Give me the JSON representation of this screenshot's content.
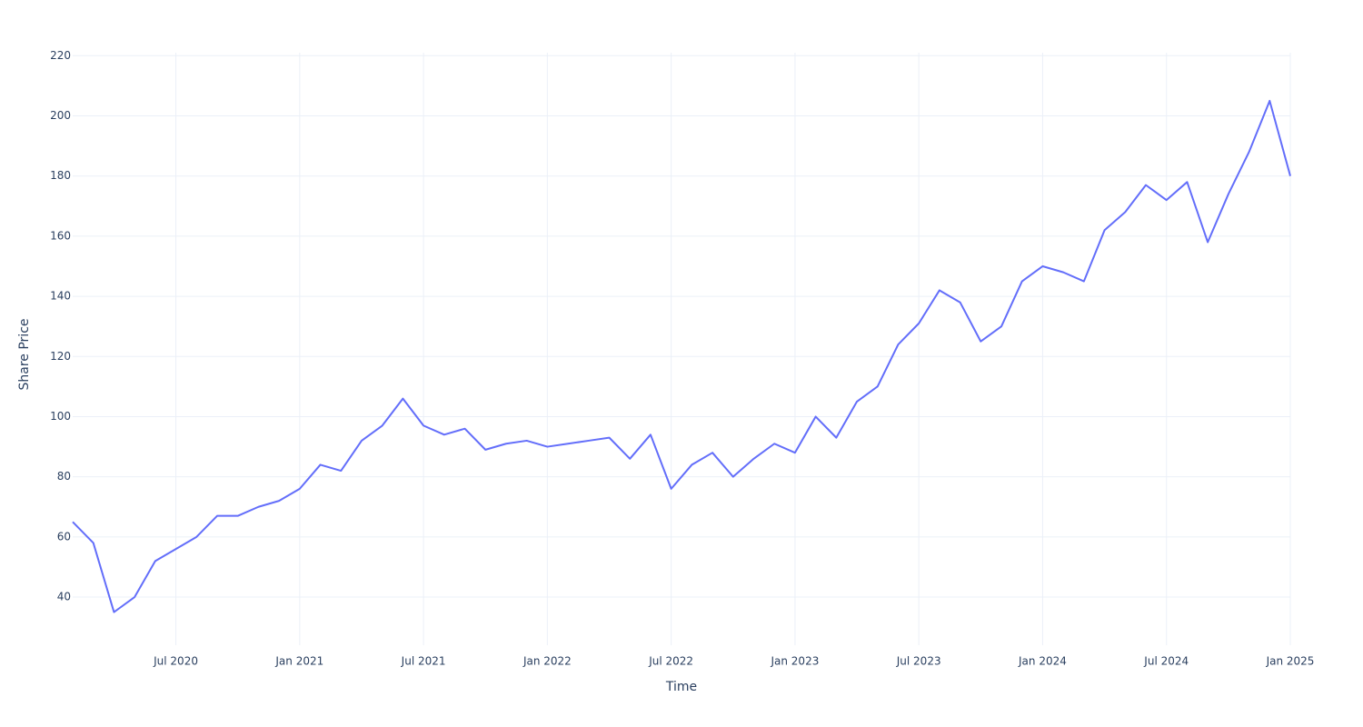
{
  "chart_data": {
    "type": "line",
    "x_label": "Time",
    "y_label": "Share Price",
    "x": [
      "2020-02",
      "2020-03",
      "2020-04",
      "2020-05",
      "2020-06",
      "2020-07",
      "2020-08",
      "2020-09",
      "2020-10",
      "2020-11",
      "2020-12",
      "2021-01",
      "2021-02",
      "2021-03",
      "2021-04",
      "2021-05",
      "2021-06",
      "2021-07",
      "2021-08",
      "2021-09",
      "2021-10",
      "2021-11",
      "2021-12",
      "2022-01",
      "2022-02",
      "2022-03",
      "2022-04",
      "2022-05",
      "2022-06",
      "2022-07",
      "2022-08",
      "2022-09",
      "2022-10",
      "2022-11",
      "2022-12",
      "2023-01",
      "2023-02",
      "2023-03",
      "2023-04",
      "2023-05",
      "2023-06",
      "2023-07",
      "2023-08",
      "2023-09",
      "2023-10",
      "2023-11",
      "2023-12",
      "2024-01",
      "2024-02",
      "2024-03",
      "2024-04",
      "2024-05",
      "2024-06",
      "2024-07",
      "2024-08",
      "2024-09",
      "2024-10",
      "2024-11",
      "2024-12",
      "2025-01"
    ],
    "series": [
      {
        "name": "Share Price",
        "color": "#636efa",
        "values": [
          65,
          58,
          35,
          40,
          52,
          56,
          60,
          67,
          67,
          70,
          72,
          76,
          84,
          82,
          92,
          97,
          106,
          97,
          94,
          96,
          89,
          91,
          92,
          90,
          91,
          92,
          93,
          86,
          94,
          76,
          84,
          88,
          80,
          86,
          91,
          88,
          100,
          93,
          105,
          110,
          124,
          131,
          142,
          138,
          125,
          130,
          145,
          150,
          148,
          145,
          162,
          168,
          177,
          172,
          178,
          158,
          174,
          188,
          205,
          180
        ]
      }
    ],
    "xlim": [
      "2020-02",
      "2025-01"
    ],
    "xticks": [
      {
        "value": "2020-07",
        "label": "Jul 2020"
      },
      {
        "value": "2021-01",
        "label": "Jan 2021"
      },
      {
        "value": "2021-07",
        "label": "Jul 2021"
      },
      {
        "value": "2022-01",
        "label": "Jan 2022"
      },
      {
        "value": "2022-07",
        "label": "Jul 2022"
      },
      {
        "value": "2023-01",
        "label": "Jan 2023"
      },
      {
        "value": "2023-07",
        "label": "Jul 2023"
      },
      {
        "value": "2024-01",
        "label": "Jan 2024"
      },
      {
        "value": "2024-07",
        "label": "Jul 2024"
      },
      {
        "value": "2025-01",
        "label": "Jan 2025"
      }
    ],
    "ylim": [
      24,
      221
    ],
    "yticks": [
      40,
      60,
      80,
      100,
      120,
      140,
      160,
      180,
      200,
      220
    ],
    "grid": true
  }
}
